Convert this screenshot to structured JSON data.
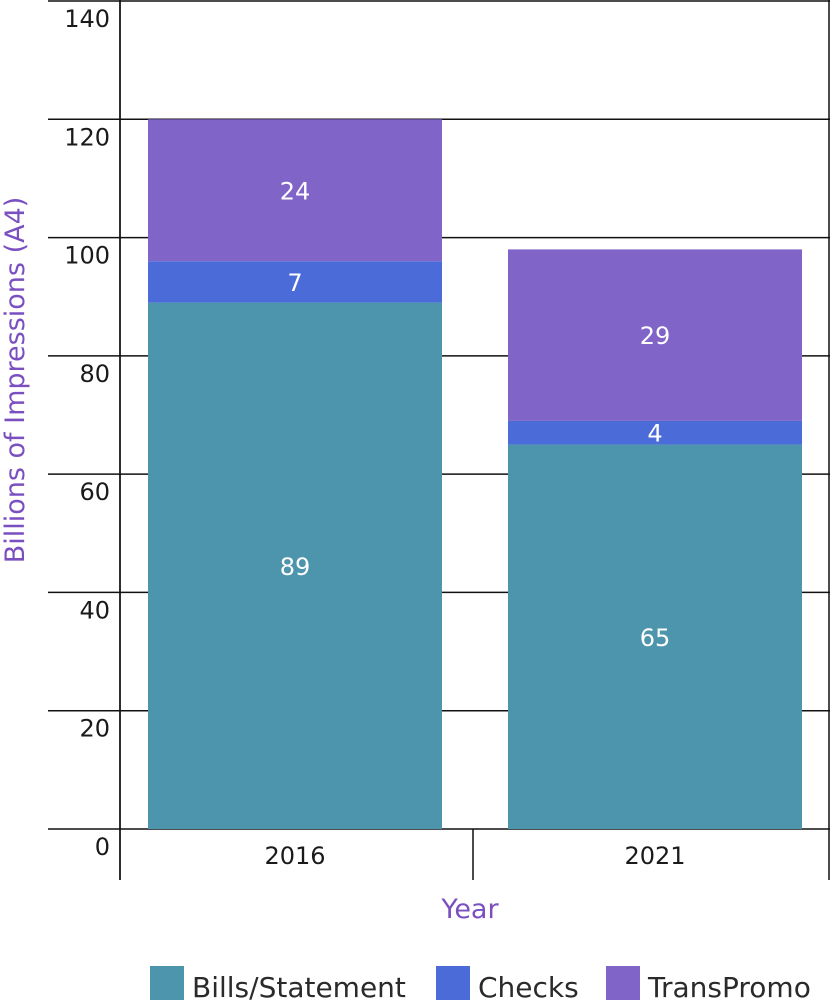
{
  "chart_data": {
    "type": "bar",
    "stacked": true,
    "categories": [
      "2016",
      "2021"
    ],
    "series": [
      {
        "name": "Bills/Statement",
        "color": "#4d95ad",
        "values": [
          89,
          65
        ]
      },
      {
        "name": "Checks",
        "color": "#4a6bd8",
        "values": [
          7,
          4
        ]
      },
      {
        "name": "TransPromo",
        "color": "#8064c8",
        "values": [
          24,
          29
        ]
      }
    ],
    "xlabel": "Year",
    "ylabel": "Billions of Impressions (A4)",
    "ylim": [
      0,
      140
    ],
    "yticks": [
      0,
      20,
      40,
      60,
      80,
      100,
      120,
      140
    ],
    "grid": true,
    "legend": "bottom",
    "axis_title_color": "#7a4fc0"
  }
}
